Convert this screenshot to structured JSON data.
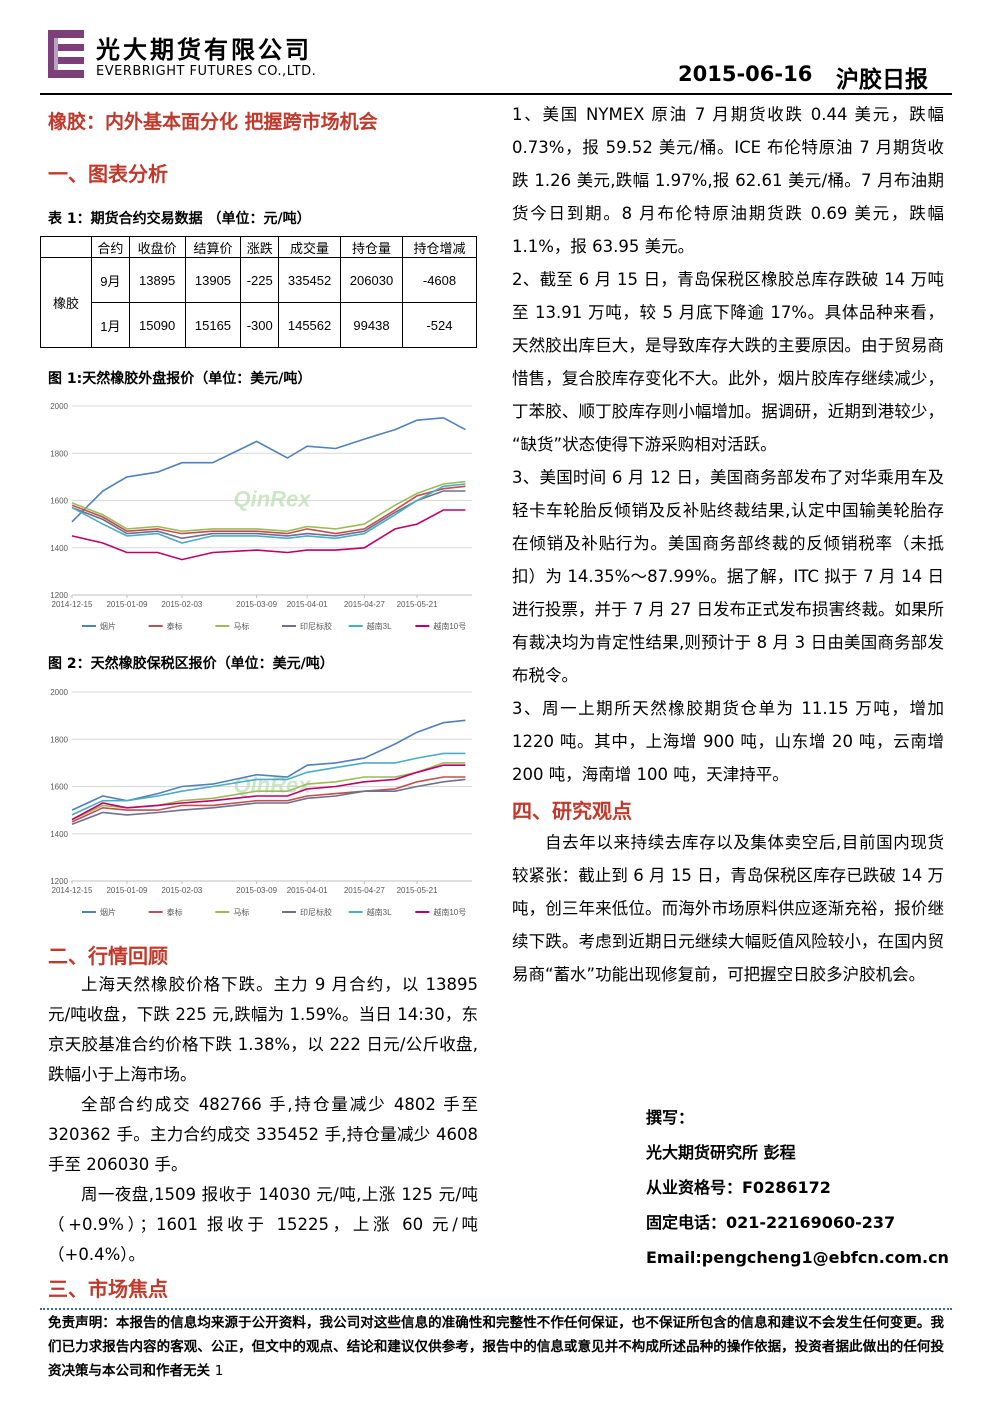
{
  "header": {
    "company_cn": "光大期货有限公司",
    "company_en": "EVERBRIGHT FUTURES CO.,LTD.",
    "date": "2015-06-16",
    "report_name": "沪胶日报"
  },
  "title": "橡胶：内外基本面分化 把握跨市场机会",
  "sections": [
    {
      "heading": "一、图表分析"
    },
    {
      "heading": "二、行情回顾",
      "paragraphs": [
        "上海天然橡胶价格下跌。主力 9 月合约，以 13895 元/吨收盘，下跌 225 元,跌幅为 1.59%。当日 14:30，东京天胶基准合约价格下跌 1.38%，以 222 日元/公斤收盘,跌幅小于上海市场。",
        "全部合约成交 482766 手,持仓量减少 4802 手至 320362 手。主力合约成交 335452 手,持仓量减少 4608 手至 206030 手。",
        "周一夜盘,1509 报收于 14030 元/吨,上涨 125 元/吨（+0.9%）；1601 报收于 15225，上涨 60 元/吨（+0.4%）。"
      ]
    },
    {
      "heading": "三、市场焦点",
      "paragraphs": [
        "1、美国 NYMEX 原油 7 月期货收跌 0.44 美元，跌幅 0.73%，报 59.52 美元/桶。ICE 布伦特原油 7 月期货收跌 1.26 美元,跌幅 1.97%,报 62.61 美元/桶。7 月布油期货今日到期。8 月布伦特原油期货跌 0.69 美元，跌幅 1.1%，报 63.95 美元。",
        "2、截至 6 月 15 日，青岛保税区橡胶总库存跌破 14 万吨至 13.91 万吨，较 5 月底下降逾 17%。具体品种来看，天然胶出库巨大，是导致库存大跌的主要原因。由于贸易商惜售，复合胶库存变化不大。此外，烟片胶库存继续减少，丁苯胶、顺丁胶库存则小幅增加。据调研，近期到港较少，“缺货”状态使得下游采购相对活跃。",
        "3、美国时间 6 月 12 日，美国商务部发布了对华乘用车及轻卡车轮胎反倾销及反补贴终裁结果,认定中国输美轮胎存在倾销及补贴行为。美国商务部终裁的反倾销税率（未抵扣）为 14.35%～87.99%。据了解，ITC 拟于 7 月 14 日进行投票，并于 7 月 27 日发布正式发布损害终裁。如果所有裁决均为肯定性结果,则预计于 8 月 3 日由美国商务部发布税令。",
        "3、周一上期所天然橡胶期货仓单为 11.15 万吨，增加 1220 吨。其中，上海增 900 吨，山东增 20 吨，云南增 200 吨，海南增 100 吨，天津持平。"
      ]
    },
    {
      "heading": "四、研究观点",
      "paragraphs": [
        "自去年以来持续去库存以及集体卖空后,目前国内现货较紧张：截止到 6 月 15 日，青岛保税区库存已跌破 14 万吨，创三年来低位。而海外市场原料供应逐渐充裕，报价继续下跌。考虑到近期日元继续大幅贬值风险较小，在国内贸易商“蓄水”功能出现修复前，可把握空日胶多沪胶机会。"
      ]
    }
  ],
  "table": {
    "caption": "表 1：期货合约交易数据 （单位：元/吨）",
    "headers": [
      "合约",
      "收盘价",
      "结算价",
      "涨跌",
      "成交量",
      "持仓量",
      "持仓增减"
    ],
    "row_label": "橡胶",
    "rows": [
      [
        "9月",
        13895,
        13905,
        -225,
        335452,
        206030,
        -4608
      ],
      [
        "1月",
        15090,
        15165,
        -300,
        145562,
        99438,
        -524
      ]
    ]
  },
  "chart_data": [
    {
      "type": "line",
      "title": "图 1:天然橡胶外盘报价（单位：美元/吨）",
      "watermark": "QinRex",
      "x": [
        "2014-12-15",
        "2014-12-29",
        "2015-01-09",
        "2015-01-23",
        "2015-02-03",
        "2015-02-17",
        "2015-03-09",
        "2015-03-23",
        "2015-04-01",
        "2015-04-14",
        "2015-04-27",
        "2015-05-11",
        "2015-05-21",
        "2015-06-02",
        "2015-06-12"
      ],
      "xlim": [
        "2014-12-15",
        "2015-06-15"
      ],
      "xticks": [
        "2014-12-15",
        "2015-01-09",
        "2015-02-03",
        "2015-03-09",
        "2015-04-01",
        "2015-04-27",
        "2015-05-21"
      ],
      "ylim": [
        1200,
        2000
      ],
      "yticks": [
        1200,
        1400,
        1600,
        1800,
        2000
      ],
      "grid": true,
      "legend": "bottom",
      "series": [
        {
          "name": "烟片",
          "color": "#4f81bd",
          "values": [
            1510,
            1640,
            1700,
            1720,
            1760,
            1760,
            1850,
            1780,
            1830,
            1820,
            1860,
            1900,
            1940,
            1950,
            1900
          ]
        },
        {
          "name": "泰标",
          "color": "#c0504d",
          "values": [
            1580,
            1530,
            1470,
            1480,
            1460,
            1470,
            1470,
            1460,
            1480,
            1460,
            1480,
            1560,
            1620,
            1650,
            1660
          ]
        },
        {
          "name": "马标",
          "color": "#9bbb59",
          "values": [
            1590,
            1540,
            1480,
            1490,
            1470,
            1480,
            1480,
            1470,
            1490,
            1480,
            1500,
            1580,
            1630,
            1670,
            1680
          ]
        },
        {
          "name": "印尼标胶",
          "color": "#6f6f8f",
          "values": [
            1570,
            1520,
            1460,
            1470,
            1440,
            1460,
            1460,
            1450,
            1460,
            1450,
            1470,
            1550,
            1600,
            1640,
            1640
          ]
        },
        {
          "name": "越南3L",
          "color": "#4bacc6",
          "values": [
            1570,
            1500,
            1450,
            1460,
            1420,
            1450,
            1450,
            1440,
            1450,
            1440,
            1460,
            1540,
            1600,
            1660,
            1670
          ]
        },
        {
          "name": "越南10号",
          "color": "#c0006a",
          "values": [
            1450,
            1420,
            1380,
            1380,
            1350,
            1380,
            1390,
            1380,
            1390,
            1390,
            1400,
            1480,
            1500,
            1560,
            1560
          ]
        }
      ]
    },
    {
      "type": "line",
      "title": "图 2：天然橡胶保税区报价（单位：美元/吨）",
      "watermark": "QinRex",
      "x": [
        "2014-12-15",
        "2014-12-29",
        "2015-01-09",
        "2015-01-23",
        "2015-02-03",
        "2015-02-17",
        "2015-03-09",
        "2015-03-23",
        "2015-04-01",
        "2015-04-14",
        "2015-04-27",
        "2015-05-11",
        "2015-05-21",
        "2015-06-02",
        "2015-06-12"
      ],
      "xlim": [
        "2014-12-15",
        "2015-06-15"
      ],
      "xticks": [
        "2014-12-15",
        "2015-01-09",
        "2015-02-03",
        "2015-03-09",
        "2015-04-01",
        "2015-04-27",
        "2015-05-21"
      ],
      "ylim": [
        1200,
        2000
      ],
      "yticks": [
        1200,
        1400,
        1600,
        1800,
        2000
      ],
      "grid": true,
      "legend": "bottom",
      "series": [
        {
          "name": "烟片",
          "color": "#4f81bd",
          "values": [
            1500,
            1560,
            1540,
            1570,
            1600,
            1610,
            1650,
            1640,
            1690,
            1700,
            1720,
            1780,
            1830,
            1870,
            1880
          ]
        },
        {
          "name": "泰标",
          "color": "#c0504d",
          "values": [
            1450,
            1510,
            1500,
            1500,
            1520,
            1520,
            1540,
            1540,
            1560,
            1570,
            1580,
            1590,
            1620,
            1640,
            1640
          ]
        },
        {
          "name": "马标",
          "color": "#9bbb59",
          "values": [
            1460,
            1520,
            1510,
            1520,
            1540,
            1550,
            1580,
            1580,
            1610,
            1620,
            1640,
            1640,
            1660,
            1700,
            1700
          ]
        },
        {
          "name": "印尼标胶",
          "color": "#6f6f8f",
          "values": [
            1440,
            1490,
            1480,
            1490,
            1500,
            1510,
            1530,
            1530,
            1550,
            1560,
            1580,
            1580,
            1600,
            1620,
            1630
          ]
        },
        {
          "name": "越南3L",
          "color": "#4bacc6",
          "values": [
            1480,
            1540,
            1540,
            1560,
            1580,
            1600,
            1630,
            1630,
            1660,
            1680,
            1700,
            1700,
            1720,
            1740,
            1740
          ]
        },
        {
          "name": "越南10号",
          "color": "#c0006a",
          "values": [
            1460,
            1530,
            1510,
            1520,
            1530,
            1540,
            1560,
            1560,
            1590,
            1600,
            1620,
            1630,
            1660,
            1690,
            1690
          ]
        }
      ]
    }
  ],
  "author": {
    "label": "撰写：",
    "name": "光大期货研究所 彭程",
    "license": "从业资格号：F0286172",
    "phone": "固定电话：021-22169060-237",
    "email": "Email:pengcheng1@ebfcn.com.cn"
  },
  "footer": {
    "disclaimer": "免责声明：本报告的信息均来源于公开资料，我公司对这些信息的准确性和完整性不作任何保证，也不保证所包含的信息和建议不会发生任何变更。我们已力求报告内容的客观、公正，但文中的观点、结论和建议仅供参考，报告中的信息或意见并不构成所述品种的操作依据，投资者据此做出的任何投资决策与本公司和作者无关",
    "page": 1
  }
}
